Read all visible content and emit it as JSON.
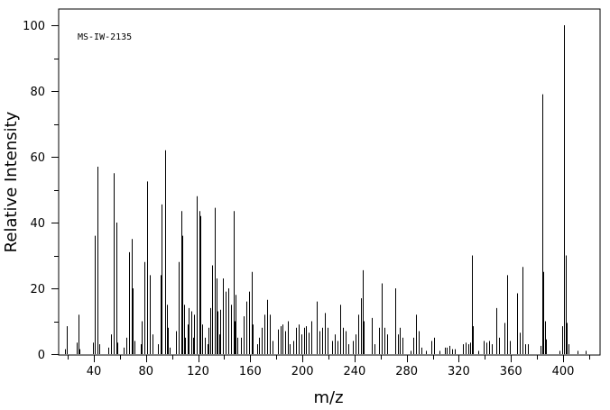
{
  "chart_data": {
    "type": "bar",
    "title": "MS-IW-2135",
    "xlabel": "m/z",
    "ylabel": "Relative Intensity",
    "xlim": [
      15,
      427
    ],
    "ylim": [
      0,
      100
    ],
    "xticks": [
      40,
      80,
      120,
      160,
      200,
      240,
      280,
      320,
      360,
      400
    ],
    "yticks": [
      0,
      20,
      40,
      60,
      80,
      100
    ],
    "grid": false,
    "peaks": [
      [
        18,
        1.5
      ],
      [
        19,
        8.5
      ],
      [
        27,
        3.5
      ],
      [
        28,
        12
      ],
      [
        29,
        1.5
      ],
      [
        39,
        3.5
      ],
      [
        41,
        36
      ],
      [
        43,
        57
      ],
      [
        44,
        3
      ],
      [
        51,
        2
      ],
      [
        53,
        6
      ],
      [
        55,
        55
      ],
      [
        57,
        40
      ],
      [
        58,
        3.5
      ],
      [
        63,
        2
      ],
      [
        65,
        5
      ],
      [
        67,
        31
      ],
      [
        69,
        35
      ],
      [
        70,
        20
      ],
      [
        71,
        4
      ],
      [
        76,
        3
      ],
      [
        77,
        10
      ],
      [
        79,
        28
      ],
      [
        81,
        52.5
      ],
      [
        83,
        24
      ],
      [
        85,
        6
      ],
      [
        89,
        3
      ],
      [
        91,
        24
      ],
      [
        92,
        45.5
      ],
      [
        95,
        62
      ],
      [
        96,
        15
      ],
      [
        97,
        8
      ],
      [
        98,
        2
      ],
      [
        103,
        7
      ],
      [
        105,
        28
      ],
      [
        107,
        43.5
      ],
      [
        108,
        36
      ],
      [
        109,
        15
      ],
      [
        110,
        5
      ],
      [
        112,
        9
      ],
      [
        113,
        14
      ],
      [
        115,
        13
      ],
      [
        116,
        5
      ],
      [
        117,
        12
      ],
      [
        119,
        48
      ],
      [
        121,
        43.5
      ],
      [
        122,
        42
      ],
      [
        123,
        9
      ],
      [
        125,
        5
      ],
      [
        127,
        3
      ],
      [
        128,
        8
      ],
      [
        129,
        14
      ],
      [
        131,
        27
      ],
      [
        133,
        44.5
      ],
      [
        134,
        23
      ],
      [
        135,
        13
      ],
      [
        136,
        6
      ],
      [
        137,
        13.5
      ],
      [
        139,
        23
      ],
      [
        141,
        19
      ],
      [
        143,
        20
      ],
      [
        145,
        15
      ],
      [
        147,
        43.5
      ],
      [
        148,
        10
      ],
      [
        149,
        18
      ],
      [
        150,
        5
      ],
      [
        153,
        5
      ],
      [
        155,
        11.5
      ],
      [
        157,
        16
      ],
      [
        159,
        19
      ],
      [
        161,
        25
      ],
      [
        162,
        9
      ],
      [
        165,
        3
      ],
      [
        167,
        5
      ],
      [
        169,
        8
      ],
      [
        171,
        12
      ],
      [
        173,
        16.5
      ],
      [
        175,
        12
      ],
      [
        177,
        4
      ],
      [
        181,
        7.5
      ],
      [
        183,
        8.5
      ],
      [
        185,
        9
      ],
      [
        187,
        7
      ],
      [
        189,
        10
      ],
      [
        190,
        3
      ],
      [
        193,
        4
      ],
      [
        195,
        8
      ],
      [
        197,
        9
      ],
      [
        199,
        6
      ],
      [
        201,
        8
      ],
      [
        203,
        8.5
      ],
      [
        205,
        6.5
      ],
      [
        207,
        10
      ],
      [
        211,
        16
      ],
      [
        213,
        7
      ],
      [
        215,
        8
      ],
      [
        217,
        12.5
      ],
      [
        219,
        8
      ],
      [
        223,
        4
      ],
      [
        225,
        6
      ],
      [
        227,
        4
      ],
      [
        229,
        15
      ],
      [
        231,
        8
      ],
      [
        233,
        7
      ],
      [
        235,
        3
      ],
      [
        239,
        4
      ],
      [
        241,
        6
      ],
      [
        243,
        12
      ],
      [
        245,
        17
      ],
      [
        246,
        25.5
      ],
      [
        247,
        10
      ],
      [
        253,
        11
      ],
      [
        255,
        3
      ],
      [
        259,
        8
      ],
      [
        261,
        21.5
      ],
      [
        263,
        8
      ],
      [
        265,
        6
      ],
      [
        271,
        20
      ],
      [
        273,
        6
      ],
      [
        275,
        8
      ],
      [
        277,
        5
      ],
      [
        283,
        1
      ],
      [
        285,
        5
      ],
      [
        287,
        12
      ],
      [
        289,
        7
      ],
      [
        291,
        2
      ],
      [
        295,
        1
      ],
      [
        299,
        4
      ],
      [
        301,
        5
      ],
      [
        305,
        1
      ],
      [
        309,
        2
      ],
      [
        311,
        2
      ],
      [
        313,
        2.5
      ],
      [
        315,
        1.5
      ],
      [
        317,
        1.5
      ],
      [
        323,
        3
      ],
      [
        325,
        3.5
      ],
      [
        327,
        3
      ],
      [
        329,
        3.5
      ],
      [
        330,
        30
      ],
      [
        331,
        8.5
      ],
      [
        335,
        1
      ],
      [
        339,
        4
      ],
      [
        341,
        3.5
      ],
      [
        343,
        4
      ],
      [
        345,
        3
      ],
      [
        349,
        14
      ],
      [
        351,
        5
      ],
      [
        355,
        9.5
      ],
      [
        357,
        24
      ],
      [
        359,
        4
      ],
      [
        365,
        18.5
      ],
      [
        367,
        6.5
      ],
      [
        369,
        26.5
      ],
      [
        371,
        3
      ],
      [
        373,
        3
      ],
      [
        383,
        2.5
      ],
      [
        384,
        79
      ],
      [
        385,
        25
      ],
      [
        386,
        10
      ],
      [
        387,
        4.5
      ],
      [
        397,
        1
      ],
      [
        399,
        8.5
      ],
      [
        401,
        100
      ],
      [
        402,
        30
      ],
      [
        403,
        9.5
      ],
      [
        404,
        3
      ],
      [
        411,
        1
      ],
      [
        417,
        1
      ]
    ]
  }
}
